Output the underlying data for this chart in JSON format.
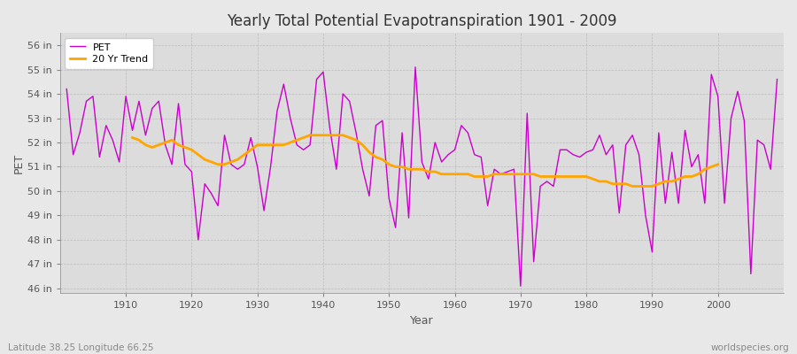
{
  "title": "Yearly Total Potential Evapotranspiration 1901 - 2009",
  "xlabel": "Year",
  "ylabel": "PET",
  "subtitle_left": "Latitude 38.25 Longitude 66.25",
  "subtitle_right": "worldspecies.org",
  "pet_color": "#CC00CC",
  "trend_color": "#FFA500",
  "fig_bg_color": "#E8E8E8",
  "plot_bg_color": "#DCDCDC",
  "ylim": [
    45.8,
    56.5
  ],
  "yticks": [
    46,
    47,
    48,
    49,
    50,
    51,
    52,
    53,
    54,
    55,
    56
  ],
  "xlim": [
    1900,
    2010
  ],
  "xticks": [
    1910,
    1920,
    1930,
    1940,
    1950,
    1960,
    1970,
    1980,
    1990,
    2000
  ],
  "years": [
    1901,
    1902,
    1903,
    1904,
    1905,
    1906,
    1907,
    1908,
    1909,
    1910,
    1911,
    1912,
    1913,
    1914,
    1915,
    1916,
    1917,
    1918,
    1919,
    1920,
    1921,
    1922,
    1923,
    1924,
    1925,
    1926,
    1927,
    1928,
    1929,
    1930,
    1931,
    1932,
    1933,
    1934,
    1935,
    1936,
    1937,
    1938,
    1939,
    1940,
    1941,
    1942,
    1943,
    1944,
    1945,
    1946,
    1947,
    1948,
    1949,
    1950,
    1951,
    1952,
    1953,
    1954,
    1955,
    1956,
    1957,
    1958,
    1959,
    1960,
    1961,
    1962,
    1963,
    1964,
    1965,
    1966,
    1967,
    1968,
    1969,
    1970,
    1971,
    1972,
    1973,
    1974,
    1975,
    1976,
    1977,
    1978,
    1979,
    1980,
    1981,
    1982,
    1983,
    1984,
    1985,
    1986,
    1987,
    1988,
    1989,
    1990,
    1991,
    1992,
    1993,
    1994,
    1995,
    1996,
    1997,
    1998,
    1999,
    2000,
    2001,
    2002,
    2003,
    2004,
    2005,
    2006,
    2007,
    2008,
    2009
  ],
  "pet": [
    54.2,
    51.5,
    52.4,
    53.7,
    53.9,
    51.4,
    52.7,
    52.1,
    51.2,
    53.9,
    52.5,
    53.7,
    52.3,
    53.4,
    53.7,
    51.9,
    51.1,
    53.6,
    51.1,
    50.8,
    48.0,
    50.3,
    49.9,
    49.4,
    52.3,
    51.1,
    50.9,
    51.1,
    52.2,
    51.0,
    49.2,
    51.0,
    53.3,
    54.4,
    53.0,
    51.9,
    51.7,
    51.9,
    54.6,
    54.9,
    52.6,
    50.9,
    54.0,
    53.7,
    52.4,
    50.9,
    49.8,
    52.7,
    52.9,
    49.7,
    48.5,
    52.4,
    48.9,
    55.1,
    51.2,
    50.5,
    52.0,
    51.2,
    51.5,
    51.7,
    52.7,
    52.4,
    51.5,
    51.4,
    49.4,
    50.9,
    50.7,
    50.8,
    50.9,
    46.1,
    53.2,
    47.1,
    50.2,
    50.4,
    50.2,
    51.7,
    51.7,
    51.5,
    51.4,
    51.6,
    51.7,
    52.3,
    51.5,
    51.9,
    49.1,
    51.9,
    52.3,
    51.5,
    49.0,
    47.5,
    52.4,
    49.5,
    51.6,
    49.5,
    52.5,
    51.0,
    51.5,
    49.5,
    54.8,
    53.9,
    49.5,
    53.0,
    54.1,
    52.9,
    46.6,
    52.1,
    51.9,
    50.9,
    54.6
  ],
  "trend": [
    null,
    null,
    null,
    null,
    null,
    null,
    null,
    null,
    null,
    null,
    52.2,
    52.1,
    51.9,
    51.8,
    51.9,
    52.0,
    52.1,
    51.9,
    51.8,
    51.7,
    51.5,
    51.3,
    51.2,
    51.1,
    51.1,
    51.2,
    51.3,
    51.5,
    51.7,
    51.9,
    51.9,
    51.9,
    51.9,
    51.9,
    52.0,
    52.1,
    52.2,
    52.3,
    52.3,
    52.3,
    52.3,
    52.3,
    52.3,
    52.2,
    52.1,
    51.9,
    51.6,
    51.4,
    51.3,
    51.1,
    51.0,
    51.0,
    50.9,
    50.9,
    50.9,
    50.8,
    50.8,
    50.7,
    50.7,
    50.7,
    50.7,
    50.7,
    50.6,
    50.6,
    50.6,
    50.7,
    50.7,
    50.7,
    50.7,
    50.7,
    50.7,
    50.7,
    50.6,
    50.6,
    50.6,
    50.6,
    50.6,
    50.6,
    50.6,
    50.6,
    50.5,
    50.4,
    50.4,
    50.3,
    50.3,
    50.3,
    50.2,
    50.2,
    50.2,
    50.2,
    50.3,
    50.4,
    50.4,
    50.5,
    50.6,
    50.6,
    50.7,
    50.9,
    51.0,
    51.1,
    null,
    null,
    null,
    null,
    null,
    null,
    null,
    null,
    null
  ]
}
